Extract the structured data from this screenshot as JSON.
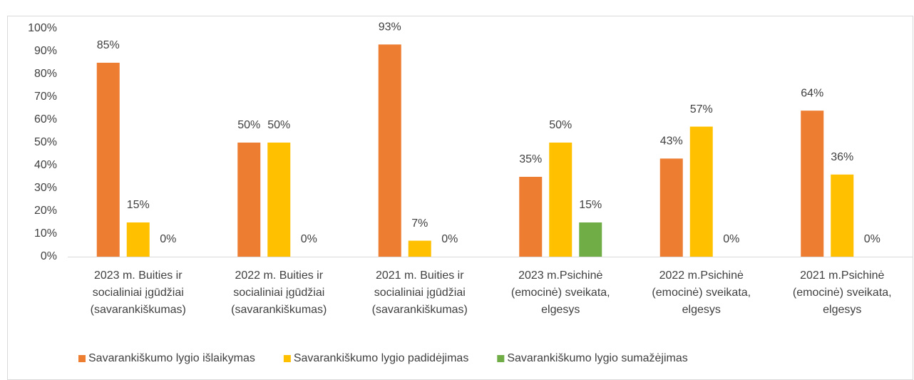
{
  "chart_data": {
    "type": "bar",
    "categories": [
      [
        "2023 m. Buities ir",
        "socialiniai įgūdžiai",
        "(savarankiškumas)"
      ],
      [
        "2022 m. Buities ir",
        "socialiniai įgūdžiai",
        "(savarankiškumas)"
      ],
      [
        "2021 m. Buities ir",
        "socialiniai įgūdžiai",
        "(savarankiškumas)"
      ],
      [
        "2023 m.Psichinė",
        "(emocinė) sveikata,",
        "elgesys"
      ],
      [
        "2022 m.Psichinė",
        "(emocinė) sveikata,",
        "elgesys"
      ],
      [
        "2021 m.Psichinė",
        "(emocinė) sveikata,",
        "elgesys"
      ]
    ],
    "series": [
      {
        "name": "Savarankiškumo lygio išlaikymas",
        "color": "#ED7D31",
        "values": [
          85,
          50,
          93,
          35,
          43,
          64
        ],
        "value_labels": [
          "85%",
          "50%",
          "93%",
          "35%",
          "43%",
          "64%"
        ]
      },
      {
        "name": "Savarankiškumo lygio padidėjimas",
        "color": "#FFC000",
        "values": [
          15,
          50,
          7,
          50,
          57,
          36
        ],
        "value_labels": [
          "15%",
          "50%",
          "7%",
          "50%",
          "57%",
          "36%"
        ]
      },
      {
        "name": "Savarankiškumo lygio sumažėjimas",
        "color": "#70AD47",
        "values": [
          0,
          0,
          0,
          15,
          0,
          0
        ],
        "value_labels": [
          "0%",
          "0%",
          "0%",
          "15%",
          "0%",
          "0%"
        ]
      }
    ],
    "ylim": [
      0,
      100
    ],
    "yticks": [
      {
        "value": 0,
        "label": "0%"
      },
      {
        "value": 10,
        "label": "10%"
      },
      {
        "value": 20,
        "label": "20%"
      },
      {
        "value": 30,
        "label": "30%"
      },
      {
        "value": 40,
        "label": "40%"
      },
      {
        "value": 50,
        "label": "50%"
      },
      {
        "value": 60,
        "label": "60%"
      },
      {
        "value": 70,
        "label": "70%"
      },
      {
        "value": 80,
        "label": "80%"
      },
      {
        "value": 90,
        "label": "90%"
      },
      {
        "value": 100,
        "label": "100%"
      }
    ],
    "grid": false,
    "legend": "bottom"
  }
}
